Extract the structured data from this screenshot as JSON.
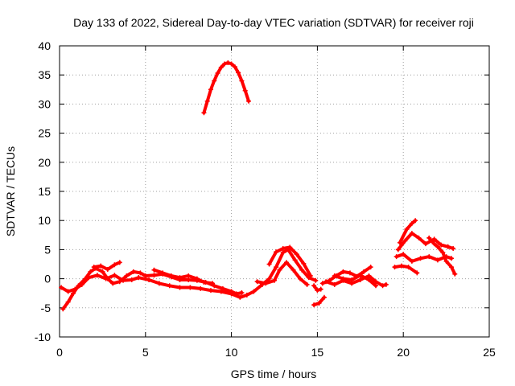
{
  "chart_data": {
    "type": "scatter",
    "title": "Day 133 of 2022, Sidereal Day-to-day VTEC variation (SDTVAR) for receiver roji",
    "xlabel": "GPS time / hours",
    "ylabel": "SDTVAR / TECUs",
    "xlim": [
      0,
      25
    ],
    "ylim": [
      -10,
      40
    ],
    "xticks": [
      0,
      5,
      10,
      15,
      20,
      25
    ],
    "yticks": [
      -10,
      -5,
      0,
      5,
      10,
      15,
      20,
      25,
      30,
      35,
      40
    ],
    "grid": true,
    "marker_color": "#ff0000",
    "series": [
      {
        "name": "SDTVAR",
        "segments": [
          [
            [
              0.2,
              -5.2
            ],
            [
              0.5,
              -4.0
            ],
            [
              0.8,
              -2.5
            ],
            [
              1.1,
              -1.2
            ],
            [
              1.5,
              0.0
            ],
            [
              1.8,
              1.2
            ],
            [
              2.1,
              1.8
            ],
            [
              2.5,
              1.2
            ],
            [
              2.8,
              0.0
            ],
            [
              3.1,
              -0.8
            ],
            [
              3.5,
              -0.5
            ],
            [
              3.9,
              0.5
            ],
            [
              4.3,
              1.2
            ],
            [
              4.7,
              1.0
            ],
            [
              5.0,
              0.5
            ],
            [
              5.5,
              0.6
            ],
            [
              6.0,
              0.8
            ],
            [
              6.5,
              0.3
            ],
            [
              7.0,
              -0.2
            ],
            [
              7.5,
              -0.2
            ],
            [
              8.0,
              -0.3
            ],
            [
              8.5,
              -0.6
            ],
            [
              9.0,
              -1.2
            ],
            [
              9.5,
              -1.7
            ],
            [
              10.0,
              -2.2
            ],
            [
              10.3,
              -2.6
            ],
            [
              10.6,
              -2.4
            ]
          ],
          [
            [
              0.1,
              -1.5
            ],
            [
              0.5,
              -2.2
            ],
            [
              0.9,
              -1.8
            ],
            [
              1.3,
              -1.0
            ],
            [
              1.7,
              0.2
            ],
            [
              2.2,
              0.6
            ],
            [
              2.7,
              0.0
            ],
            [
              3.2,
              0.6
            ],
            [
              3.7,
              -0.3
            ],
            [
              4.2,
              -0.2
            ],
            [
              4.6,
              0.2
            ]
          ],
          [
            [
              2.0,
              2.0
            ],
            [
              2.4,
              2.2
            ],
            [
              2.8,
              1.6
            ],
            [
              3.2,
              2.4
            ],
            [
              3.5,
              2.8
            ]
          ],
          [
            [
              4.6,
              0.2
            ],
            [
              5.2,
              -0.2
            ],
            [
              5.8,
              -0.8
            ],
            [
              6.4,
              -1.2
            ],
            [
              7.0,
              -1.5
            ],
            [
              7.6,
              -1.5
            ],
            [
              8.2,
              -1.7
            ],
            [
              8.8,
              -2.0
            ],
            [
              9.4,
              -2.2
            ],
            [
              10.0,
              -2.6
            ],
            [
              10.5,
              -3.2
            ],
            [
              10.9,
              -2.8
            ],
            [
              11.3,
              -2.2
            ],
            [
              11.8,
              -1.0
            ],
            [
              12.2,
              0.0
            ],
            [
              12.6,
              2.0
            ],
            [
              13.0,
              4.5
            ],
            [
              13.3,
              5.0
            ],
            [
              13.7,
              3.2
            ],
            [
              14.1,
              1.5
            ],
            [
              14.5,
              0.2
            ],
            [
              14.9,
              -0.3
            ]
          ],
          [
            [
              5.5,
              1.5
            ],
            [
              6.0,
              1.0
            ],
            [
              6.5,
              0.5
            ],
            [
              7.0,
              0.2
            ],
            [
              7.5,
              0.5
            ],
            [
              8.0,
              0.0
            ],
            [
              8.4,
              -0.6
            ],
            [
              8.9,
              -0.8
            ]
          ],
          [
            [
              11.5,
              -0.5
            ],
            [
              12.0,
              -0.8
            ],
            [
              12.5,
              -0.3
            ],
            [
              12.8,
              1.5
            ],
            [
              13.2,
              2.8
            ],
            [
              13.6,
              1.5
            ],
            [
              14.0,
              0.0
            ],
            [
              14.4,
              -1.0
            ]
          ],
          [
            [
              12.2,
              2.5
            ],
            [
              12.6,
              4.6
            ],
            [
              13.0,
              5.2
            ],
            [
              13.4,
              5.4
            ],
            [
              13.8,
              4.2
            ],
            [
              14.2,
              2.6
            ],
            [
              14.6,
              0.5
            ]
          ],
          [
            [
              14.8,
              -1.2
            ],
            [
              15.0,
              -2.0
            ],
            [
              15.2,
              -1.8
            ]
          ],
          [
            [
              14.8,
              -4.5
            ],
            [
              15.1,
              -4.2
            ],
            [
              15.4,
              -3.2
            ]
          ],
          [
            [
              15.3,
              -0.8
            ],
            [
              15.7,
              -0.3
            ],
            [
              16.1,
              0.5
            ],
            [
              16.5,
              1.2
            ],
            [
              16.9,
              1.0
            ],
            [
              17.3,
              0.4
            ],
            [
              17.7,
              1.2
            ],
            [
              18.1,
              2.0
            ]
          ],
          [
            [
              15.5,
              -0.5
            ],
            [
              16.0,
              -1.0
            ],
            [
              16.5,
              -0.3
            ],
            [
              17.0,
              -0.8
            ],
            [
              17.5,
              -0.2
            ],
            [
              18.0,
              0.5
            ],
            [
              18.4,
              -0.5
            ],
            [
              18.8,
              -1.2
            ],
            [
              19.0,
              -1.0
            ]
          ],
          [
            [
              16.0,
              0.5
            ],
            [
              16.5,
              0.0
            ],
            [
              17.0,
              -0.2
            ],
            [
              17.5,
              0.6
            ],
            [
              18.0,
              -0.2
            ],
            [
              18.4,
              -1.2
            ]
          ],
          [
            [
              19.5,
              2.0
            ],
            [
              19.9,
              2.2
            ],
            [
              20.3,
              2.0
            ],
            [
              20.8,
              1.0
            ]
          ],
          [
            [
              19.6,
              3.8
            ],
            [
              20.0,
              4.2
            ],
            [
              20.5,
              3.0
            ],
            [
              21.0,
              3.5
            ],
            [
              21.5,
              3.8
            ],
            [
              22.0,
              3.2
            ],
            [
              22.5,
              3.8
            ],
            [
              22.8,
              3.5
            ]
          ],
          [
            [
              19.7,
              5.0
            ],
            [
              20.1,
              6.5
            ],
            [
              20.5,
              7.8
            ],
            [
              20.9,
              7.0
            ],
            [
              21.3,
              6.0
            ],
            [
              21.8,
              6.8
            ],
            [
              22.2,
              5.8
            ],
            [
              22.6,
              5.5
            ],
            [
              22.9,
              5.2
            ]
          ],
          [
            [
              19.8,
              6.2
            ],
            [
              20.2,
              8.5
            ],
            [
              20.5,
              9.5
            ],
            [
              20.7,
              10.0
            ]
          ],
          [
            [
              21.5,
              7.0
            ],
            [
              21.8,
              6.0
            ],
            [
              22.0,
              5.5
            ],
            [
              22.3,
              4.5
            ],
            [
              22.5,
              3.0
            ],
            [
              22.8,
              2.0
            ],
            [
              23.0,
              0.8
            ]
          ]
        ],
        "peak_segment": [
          [
            8.4,
            28.5
          ],
          [
            8.6,
            30.5
          ],
          [
            8.8,
            32.5
          ],
          [
            9.0,
            34.0
          ],
          [
            9.2,
            35.3
          ],
          [
            9.4,
            36.3
          ],
          [
            9.6,
            36.9
          ],
          [
            9.8,
            37.1
          ],
          [
            10.0,
            36.9
          ],
          [
            10.2,
            36.4
          ],
          [
            10.4,
            35.4
          ],
          [
            10.6,
            34.0
          ],
          [
            10.8,
            32.3
          ],
          [
            11.0,
            30.5
          ]
        ]
      }
    ]
  }
}
